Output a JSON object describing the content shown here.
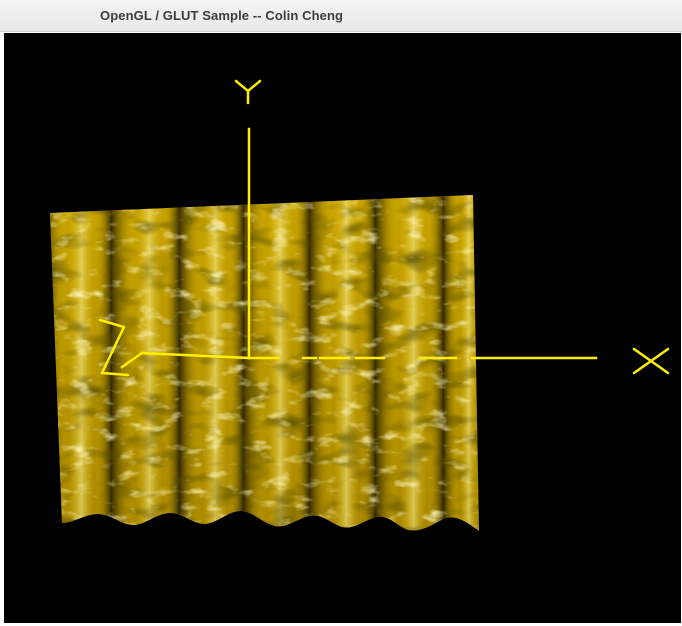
{
  "window": {
    "title": "OpenGL / GLUT Sample -- Colin Cheng"
  },
  "scene": {
    "background_color": "#000000",
    "axis_color": "#ffee00",
    "surface_color": "#e6c200",
    "highlight_color": "#fff6a0",
    "axis_labels": {
      "x": "X",
      "y": "Y",
      "z": "Z"
    }
  }
}
